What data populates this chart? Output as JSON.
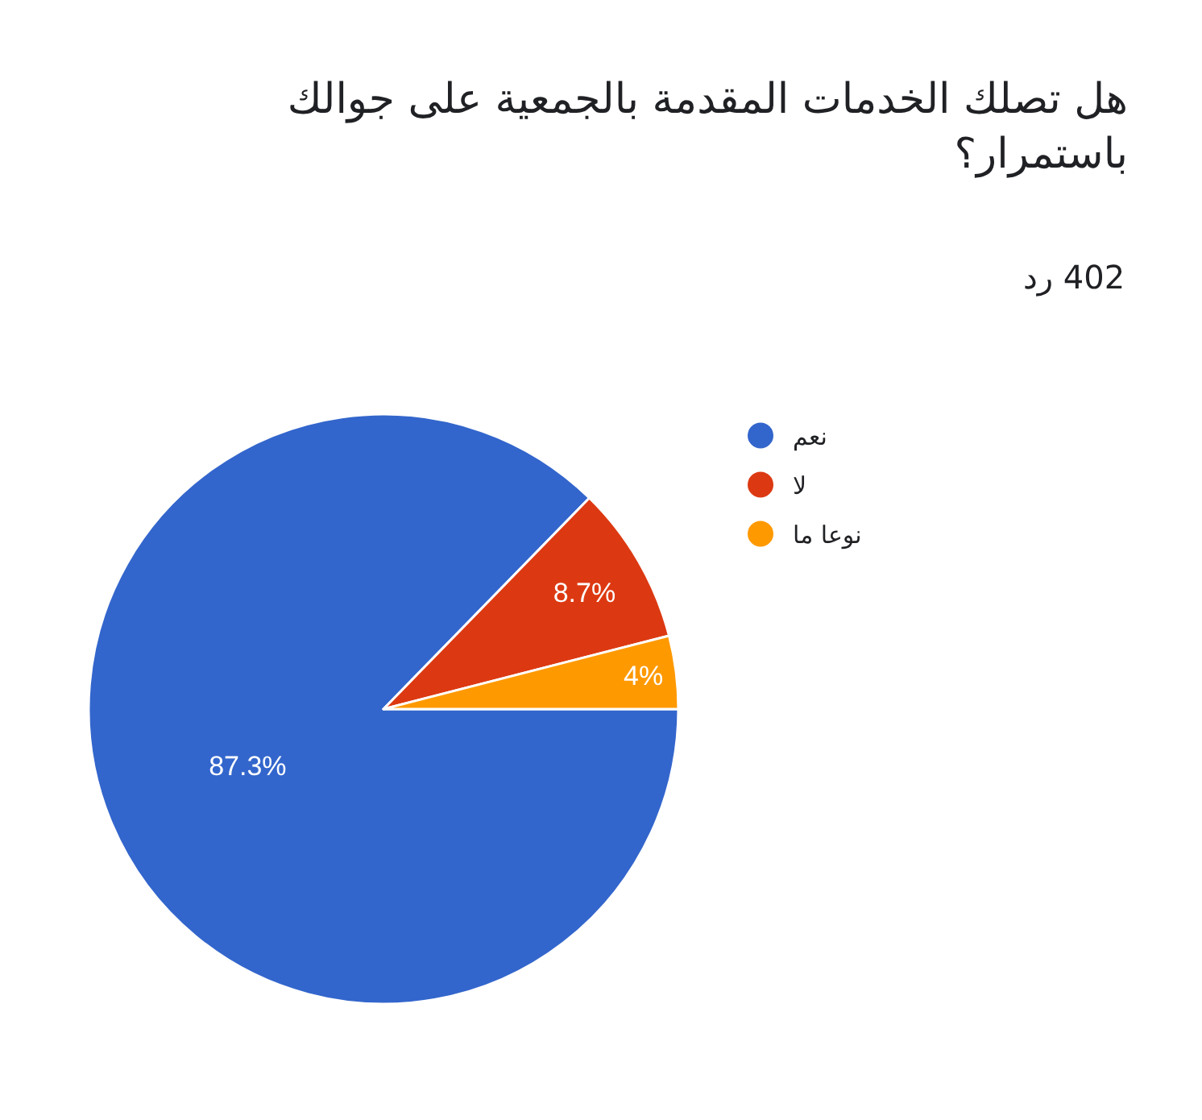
{
  "chart_data": {
    "type": "pie",
    "title": "هل تصلك الخدمات المقدمة بالجمعية على جوالك باستمرار؟",
    "subtitle": "402 رد",
    "categories": [
      "نعم",
      "لا",
      "نوعا ما"
    ],
    "values": [
      87.3,
      8.7,
      4
    ],
    "colors": [
      "#3366cc",
      "#dc3912",
      "#ff9900"
    ],
    "value_labels": [
      "87.3%",
      "8.7%",
      "4%"
    ],
    "legend": "top right"
  }
}
